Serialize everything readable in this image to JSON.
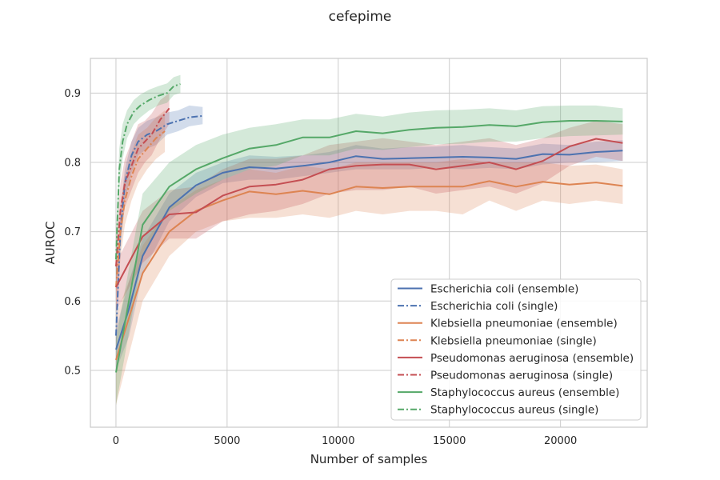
{
  "chart_data": {
    "type": "line",
    "title": "cefepime",
    "xlabel": "Number of samples",
    "ylabel": "AUROC",
    "xlim": [
      -1150,
      23900
    ],
    "ylim": [
      0.418,
      0.95
    ],
    "xticks": [
      0,
      5000,
      10000,
      15000,
      20000
    ],
    "xtick_labels": [
      "0",
      "5000",
      "10000",
      "15000",
      "20000"
    ],
    "yticks": [
      0.5,
      0.6,
      0.7,
      0.8,
      0.9
    ],
    "ytick_labels": [
      "0.5",
      "0.6",
      "0.7",
      "0.8",
      "0.9"
    ],
    "grid": true,
    "legend_position": "lower-right",
    "series": [
      {
        "name": "Escherichia coli (ensemble)",
        "color": "#4c72b0",
        "style": "solid",
        "points": [
          [
            0,
            0.53,
            0.5,
            0.56
          ],
          [
            600,
            0.59,
            0.55,
            0.63
          ],
          [
            1200,
            0.665,
            0.64,
            0.69
          ],
          [
            2400,
            0.735,
            0.715,
            0.755
          ],
          [
            3600,
            0.767,
            0.75,
            0.785
          ],
          [
            4800,
            0.785,
            0.77,
            0.8
          ],
          [
            6000,
            0.793,
            0.775,
            0.81
          ],
          [
            7200,
            0.791,
            0.775,
            0.808
          ],
          [
            8400,
            0.795,
            0.78,
            0.81
          ],
          [
            9600,
            0.8,
            0.785,
            0.815
          ],
          [
            10800,
            0.809,
            0.79,
            0.825
          ],
          [
            12000,
            0.805,
            0.79,
            0.82
          ],
          [
            13200,
            0.806,
            0.79,
            0.822
          ],
          [
            14400,
            0.807,
            0.792,
            0.823
          ],
          [
            15600,
            0.808,
            0.79,
            0.825
          ],
          [
            16800,
            0.807,
            0.792,
            0.822
          ],
          [
            18000,
            0.805,
            0.79,
            0.82
          ],
          [
            19200,
            0.812,
            0.797,
            0.827
          ],
          [
            20400,
            0.811,
            0.8,
            0.825
          ],
          [
            21600,
            0.815,
            0.8,
            0.83
          ],
          [
            22800,
            0.817,
            0.802,
            0.832
          ]
        ]
      },
      {
        "name": "Escherichia coli (single)",
        "color": "#4c72b0",
        "style": "dashdot",
        "points": [
          [
            0,
            0.55,
            0.52,
            0.58
          ],
          [
            200,
            0.7,
            0.67,
            0.73
          ],
          [
            400,
            0.77,
            0.745,
            0.79
          ],
          [
            700,
            0.81,
            0.785,
            0.83
          ],
          [
            1000,
            0.83,
            0.81,
            0.85
          ],
          [
            1400,
            0.84,
            0.82,
            0.86
          ],
          [
            1800,
            0.845,
            0.825,
            0.865
          ],
          [
            2300,
            0.855,
            0.84,
            0.872
          ],
          [
            2800,
            0.86,
            0.845,
            0.875
          ],
          [
            3300,
            0.865,
            0.852,
            0.882
          ],
          [
            3900,
            0.867,
            0.855,
            0.88
          ]
        ]
      },
      {
        "name": "Klebsiella pneumoniae (ensemble)",
        "color": "#dd8452",
        "style": "solid",
        "points": [
          [
            0,
            0.515,
            0.45,
            0.58
          ],
          [
            1200,
            0.64,
            0.6,
            0.68
          ],
          [
            2400,
            0.7,
            0.665,
            0.735
          ],
          [
            3600,
            0.73,
            0.7,
            0.76
          ],
          [
            4800,
            0.745,
            0.715,
            0.775
          ],
          [
            6000,
            0.758,
            0.72,
            0.79
          ],
          [
            7200,
            0.754,
            0.72,
            0.785
          ],
          [
            8400,
            0.759,
            0.725,
            0.795
          ],
          [
            9600,
            0.754,
            0.72,
            0.79
          ],
          [
            10800,
            0.765,
            0.73,
            0.8
          ],
          [
            12000,
            0.763,
            0.725,
            0.8
          ],
          [
            13200,
            0.765,
            0.73,
            0.8
          ],
          [
            14400,
            0.765,
            0.73,
            0.8
          ],
          [
            15600,
            0.765,
            0.725,
            0.805
          ],
          [
            16800,
            0.773,
            0.745,
            0.8
          ],
          [
            18000,
            0.765,
            0.73,
            0.8
          ],
          [
            19200,
            0.772,
            0.745,
            0.8
          ],
          [
            20400,
            0.768,
            0.74,
            0.795
          ],
          [
            21600,
            0.771,
            0.745,
            0.797
          ],
          [
            22800,
            0.766,
            0.74,
            0.79
          ]
        ]
      },
      {
        "name": "Klebsiella pneumoniae (single)",
        "color": "#dd8452",
        "style": "dashdot",
        "points": [
          [
            0,
            0.62,
            0.58,
            0.66
          ],
          [
            200,
            0.7,
            0.66,
            0.74
          ],
          [
            400,
            0.745,
            0.71,
            0.78
          ],
          [
            700,
            0.78,
            0.745,
            0.815
          ],
          [
            1000,
            0.805,
            0.77,
            0.84
          ],
          [
            1400,
            0.82,
            0.79,
            0.85
          ],
          [
            1800,
            0.835,
            0.805,
            0.865
          ],
          [
            2200,
            0.845,
            0.815,
            0.875
          ]
        ]
      },
      {
        "name": "Pseudomonas aeruginosa (ensemble)",
        "color": "#c44e52",
        "style": "solid",
        "points": [
          [
            0,
            0.62,
            0.585,
            0.655
          ],
          [
            1200,
            0.693,
            0.655,
            0.73
          ],
          [
            2400,
            0.725,
            0.69,
            0.76
          ],
          [
            3600,
            0.728,
            0.69,
            0.765
          ],
          [
            4800,
            0.752,
            0.715,
            0.79
          ],
          [
            6000,
            0.765,
            0.725,
            0.805
          ],
          [
            7200,
            0.768,
            0.73,
            0.805
          ],
          [
            8400,
            0.775,
            0.74,
            0.81
          ],
          [
            9600,
            0.79,
            0.755,
            0.825
          ],
          [
            10800,
            0.795,
            0.76,
            0.83
          ],
          [
            12000,
            0.797,
            0.76,
            0.835
          ],
          [
            13200,
            0.797,
            0.765,
            0.83
          ],
          [
            14400,
            0.79,
            0.755,
            0.825
          ],
          [
            15600,
            0.795,
            0.76,
            0.83
          ],
          [
            16800,
            0.8,
            0.765,
            0.835
          ],
          [
            18000,
            0.79,
            0.755,
            0.825
          ],
          [
            19200,
            0.802,
            0.77,
            0.835
          ],
          [
            20400,
            0.823,
            0.795,
            0.85
          ],
          [
            21600,
            0.834,
            0.808,
            0.86
          ],
          [
            22800,
            0.828,
            0.802,
            0.855
          ]
        ]
      },
      {
        "name": "Pseudomonas aeruginosa (single)",
        "color": "#c44e52",
        "style": "dashdot",
        "points": [
          [
            0,
            0.65,
            0.61,
            0.69
          ],
          [
            200,
            0.73,
            0.69,
            0.77
          ],
          [
            400,
            0.77,
            0.735,
            0.805
          ],
          [
            700,
            0.795,
            0.76,
            0.83
          ],
          [
            1000,
            0.82,
            0.785,
            0.855
          ],
          [
            1300,
            0.83,
            0.8,
            0.86
          ],
          [
            1600,
            0.84,
            0.81,
            0.87
          ],
          [
            2000,
            0.862,
            0.835,
            0.89
          ],
          [
            2400,
            0.878,
            0.855,
            0.9
          ]
        ]
      },
      {
        "name": "Staphylococcus aureus (ensemble)",
        "color": "#55a868",
        "style": "solid",
        "points": [
          [
            0,
            0.497,
            0.45,
            0.545
          ],
          [
            1200,
            0.71,
            0.665,
            0.755
          ],
          [
            2400,
            0.765,
            0.73,
            0.8
          ],
          [
            3600,
            0.79,
            0.755,
            0.825
          ],
          [
            4800,
            0.806,
            0.775,
            0.84
          ],
          [
            6000,
            0.82,
            0.79,
            0.85
          ],
          [
            7200,
            0.825,
            0.795,
            0.855
          ],
          [
            8400,
            0.836,
            0.81,
            0.862
          ],
          [
            9600,
            0.836,
            0.81,
            0.862
          ],
          [
            10800,
            0.845,
            0.82,
            0.87
          ],
          [
            12000,
            0.842,
            0.818,
            0.866
          ],
          [
            13200,
            0.847,
            0.822,
            0.872
          ],
          [
            14400,
            0.85,
            0.826,
            0.875
          ],
          [
            15600,
            0.851,
            0.827,
            0.876
          ],
          [
            16800,
            0.854,
            0.83,
            0.878
          ],
          [
            18000,
            0.852,
            0.83,
            0.875
          ],
          [
            19200,
            0.858,
            0.835,
            0.881
          ],
          [
            20400,
            0.86,
            0.838,
            0.882
          ],
          [
            21600,
            0.86,
            0.839,
            0.882
          ],
          [
            22800,
            0.859,
            0.84,
            0.878
          ]
        ]
      },
      {
        "name": "Staphylococcus aureus (single)",
        "color": "#55a868",
        "style": "dashdot",
        "points": [
          [
            0,
            0.66,
            0.62,
            0.7
          ],
          [
            150,
            0.79,
            0.76,
            0.82
          ],
          [
            300,
            0.83,
            0.805,
            0.855
          ],
          [
            500,
            0.855,
            0.835,
            0.875
          ],
          [
            800,
            0.873,
            0.855,
            0.89
          ],
          [
            1100,
            0.882,
            0.865,
            0.898
          ],
          [
            1500,
            0.89,
            0.875,
            0.905
          ],
          [
            1900,
            0.896,
            0.882,
            0.91
          ],
          [
            2300,
            0.9,
            0.886,
            0.914
          ],
          [
            2600,
            0.91,
            0.897,
            0.923
          ],
          [
            2900,
            0.913,
            0.9,
            0.926
          ]
        ]
      }
    ]
  }
}
